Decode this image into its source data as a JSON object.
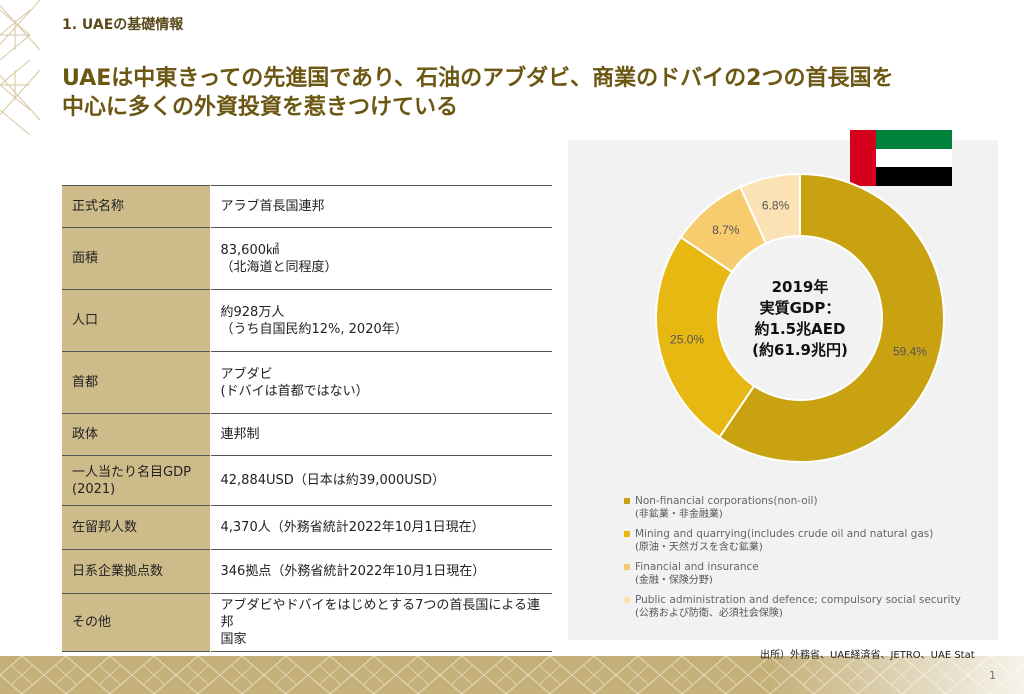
{
  "section": "1. UAEの基礎情報",
  "headline": {
    "line1": "UAEは中東きっての先進国であり、石油のアブダビ、商業のドバイの2つの首長国を",
    "line2": "中心に多くの外資投資を惹きつけている"
  },
  "info_rows": [
    {
      "key": "正式名称",
      "value": "アラブ首長国連邦"
    },
    {
      "key": "面積",
      "value": "83,600㎢\n（北海道と同程度）"
    },
    {
      "key": "人口",
      "value": "約928万人\n（うち自国民約12%, 2020年）"
    },
    {
      "key": "首都",
      "value": "アブダビ\n(ドバイは首都ではない）"
    },
    {
      "key": "政体",
      "value": "連邦制"
    },
    {
      "key": "一人当たり名目GDP\n(2021)",
      "value": "42,884USD（日本は約39,000USD）"
    },
    {
      "key": "在留邦人数",
      "value": "4,370人（外務省統計2022年10月1日現在）"
    },
    {
      "key": "日系企業拠点数",
      "value": "346拠点（外務省統計2022年10月1日現在）"
    },
    {
      "key": "その他",
      "value": "アブダビやドバイをはじめとする7つの首長国による連邦\n国家"
    }
  ],
  "flag_colors": {
    "red": "#d6001c",
    "green": "#00843d",
    "white": "#ffffff",
    "black": "#000000"
  },
  "chart_data": {
    "type": "pie",
    "variant": "donut",
    "center_text": [
      "2019年",
      "実質GDP：",
      "約1.5兆AED",
      "(約61.9兆円)"
    ],
    "series": [
      {
        "name": "Non-financial corporations(non-oil)",
        "sub": "(非鉱業・非金融業)",
        "value": 59.4,
        "label": "59.4%",
        "color": "#c9a212"
      },
      {
        "name": "Mining and quarrying(includes crude oil and natural gas)",
        "sub": "(原油・天然ガスを含む鉱業)",
        "value": 25.0,
        "label": "25.0%",
        "color": "#e7b812"
      },
      {
        "name": "Financial and insurance",
        "sub": "(金融・保険分野)",
        "value": 8.7,
        "label": "8.7%",
        "color": "#f6cc6e"
      },
      {
        "name": "Public administration and defence; compulsory social security",
        "sub": "(公務および防衛、必須社会保険)",
        "value": 6.8,
        "label": "6.8%",
        "color": "#fae2b4"
      }
    ]
  },
  "source": "出所）外務省、UAE経済省、JETRO、UAE Stat",
  "page_number": "1"
}
